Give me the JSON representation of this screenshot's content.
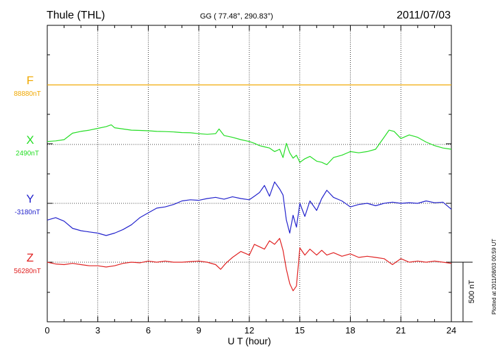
{
  "header": {
    "station": "Thule (THL)",
    "coords": "GG ( 77.48°, 290.83°)",
    "date": "2011/07/03"
  },
  "footer_note": "Plotted at 2011/08/03 00:59 UT",
  "scale_label": "500 nT",
  "chart_data": {
    "type": "line",
    "xlabel": "U T (hour)",
    "xlim": [
      0,
      24
    ],
    "xticks": [
      0,
      3,
      6,
      9,
      12,
      15,
      18,
      21,
      24
    ],
    "xtick_labels": [
      "0",
      "3",
      "6",
      "9",
      "12",
      "15",
      "18",
      "21",
      "24"
    ],
    "baseline_spacing_nT": 500,
    "scale_bar_nT": 500,
    "grid": "dotted",
    "series": [
      {
        "name": "F",
        "baseline_label": "88880nT",
        "color": "#f0a800",
        "x": [
          0,
          24
        ],
        "y": [
          0,
          0
        ]
      },
      {
        "name": "X",
        "baseline_label": "2490nT",
        "color": "#22dd22",
        "x": [
          0,
          0.5,
          1,
          1.5,
          2,
          2.5,
          3,
          3.5,
          3.8,
          4,
          4.5,
          5,
          5.5,
          6,
          6.5,
          7,
          7.5,
          8,
          8.5,
          9,
          9.5,
          10,
          10.2,
          10.5,
          11,
          11.5,
          12,
          12.3,
          12.6,
          12.9,
          13.2,
          13.5,
          13.8,
          14,
          14.2,
          14.4,
          14.6,
          14.8,
          15,
          15.3,
          15.6,
          16,
          16.3,
          16.6,
          17,
          17.5,
          18,
          18.5,
          19,
          19.5,
          19.8,
          20,
          20.3,
          20.6,
          21,
          21.5,
          22,
          22.5,
          23,
          23.5,
          24
        ],
        "y": [
          25,
          30,
          40,
          95,
          110,
          120,
          135,
          150,
          165,
          140,
          130,
          120,
          118,
          115,
          110,
          108,
          105,
          100,
          98,
          90,
          85,
          90,
          130,
          75,
          60,
          40,
          25,
          10,
          -10,
          -20,
          -30,
          -60,
          -40,
          -110,
          10,
          -70,
          -115,
          -90,
          -150,
          -120,
          -100,
          -140,
          -150,
          -170,
          -110,
          -90,
          -60,
          -70,
          -60,
          -40,
          20,
          60,
          120,
          110,
          50,
          80,
          60,
          20,
          -10,
          -30,
          -40
        ]
      },
      {
        "name": "Y",
        "baseline_label": "-3180nT",
        "color": "#2020cc",
        "x": [
          0,
          0.5,
          1,
          1.5,
          2,
          2.5,
          3,
          3.5,
          4,
          4.5,
          5,
          5.5,
          6,
          6.5,
          7,
          7.5,
          8,
          8.5,
          9,
          9.5,
          10,
          10.5,
          11,
          11.5,
          12,
          12.3,
          12.6,
          12.9,
          13.2,
          13.5,
          13.8,
          14,
          14.2,
          14.4,
          14.6,
          14.8,
          15,
          15.3,
          15.6,
          16,
          16.3,
          16.6,
          17,
          17.5,
          18,
          18.5,
          19,
          19.5,
          20,
          20.5,
          21,
          21.5,
          22,
          22.5,
          23,
          23.5,
          24
        ],
        "y": [
          -140,
          -120,
          -150,
          -210,
          -230,
          -240,
          -250,
          -270,
          -250,
          -220,
          -180,
          -120,
          -80,
          -40,
          -30,
          -10,
          20,
          30,
          25,
          40,
          50,
          35,
          55,
          40,
          30,
          60,
          90,
          150,
          60,
          180,
          120,
          70,
          -140,
          -250,
          -100,
          -200,
          0,
          -110,
          20,
          -60,
          40,
          110,
          50,
          20,
          -30,
          -10,
          0,
          -20,
          0,
          10,
          0,
          5,
          0,
          20,
          5,
          10,
          -50
        ]
      },
      {
        "name": "Z",
        "baseline_label": "56280nT",
        "color": "#e02020",
        "x": [
          0,
          0.5,
          1,
          1.5,
          2,
          2.5,
          3,
          3.5,
          4,
          4.5,
          5,
          5.5,
          6,
          6.5,
          7,
          7.5,
          8,
          8.5,
          9,
          9.5,
          10,
          10.3,
          10.6,
          11,
          11.5,
          12,
          12.3,
          12.6,
          12.9,
          13.2,
          13.5,
          13.8,
          14,
          14.2,
          14.4,
          14.6,
          14.8,
          15,
          15.3,
          15.6,
          16,
          16.3,
          16.6,
          17,
          17.5,
          18,
          18.5,
          19,
          19.5,
          20,
          20.5,
          21,
          21.5,
          22,
          22.5,
          23,
          23.5,
          24
        ],
        "y": [
          0,
          -15,
          -20,
          -10,
          -20,
          -30,
          -30,
          -40,
          -30,
          -10,
          0,
          -5,
          10,
          0,
          10,
          0,
          0,
          5,
          10,
          0,
          -20,
          -60,
          -10,
          40,
          90,
          60,
          150,
          130,
          110,
          180,
          150,
          200,
          100,
          -60,
          -180,
          -240,
          -200,
          120,
          60,
          110,
          60,
          100,
          60,
          80,
          50,
          70,
          40,
          50,
          40,
          30,
          -20,
          30,
          0,
          10,
          0,
          10,
          0,
          -10
        ]
      }
    ]
  }
}
